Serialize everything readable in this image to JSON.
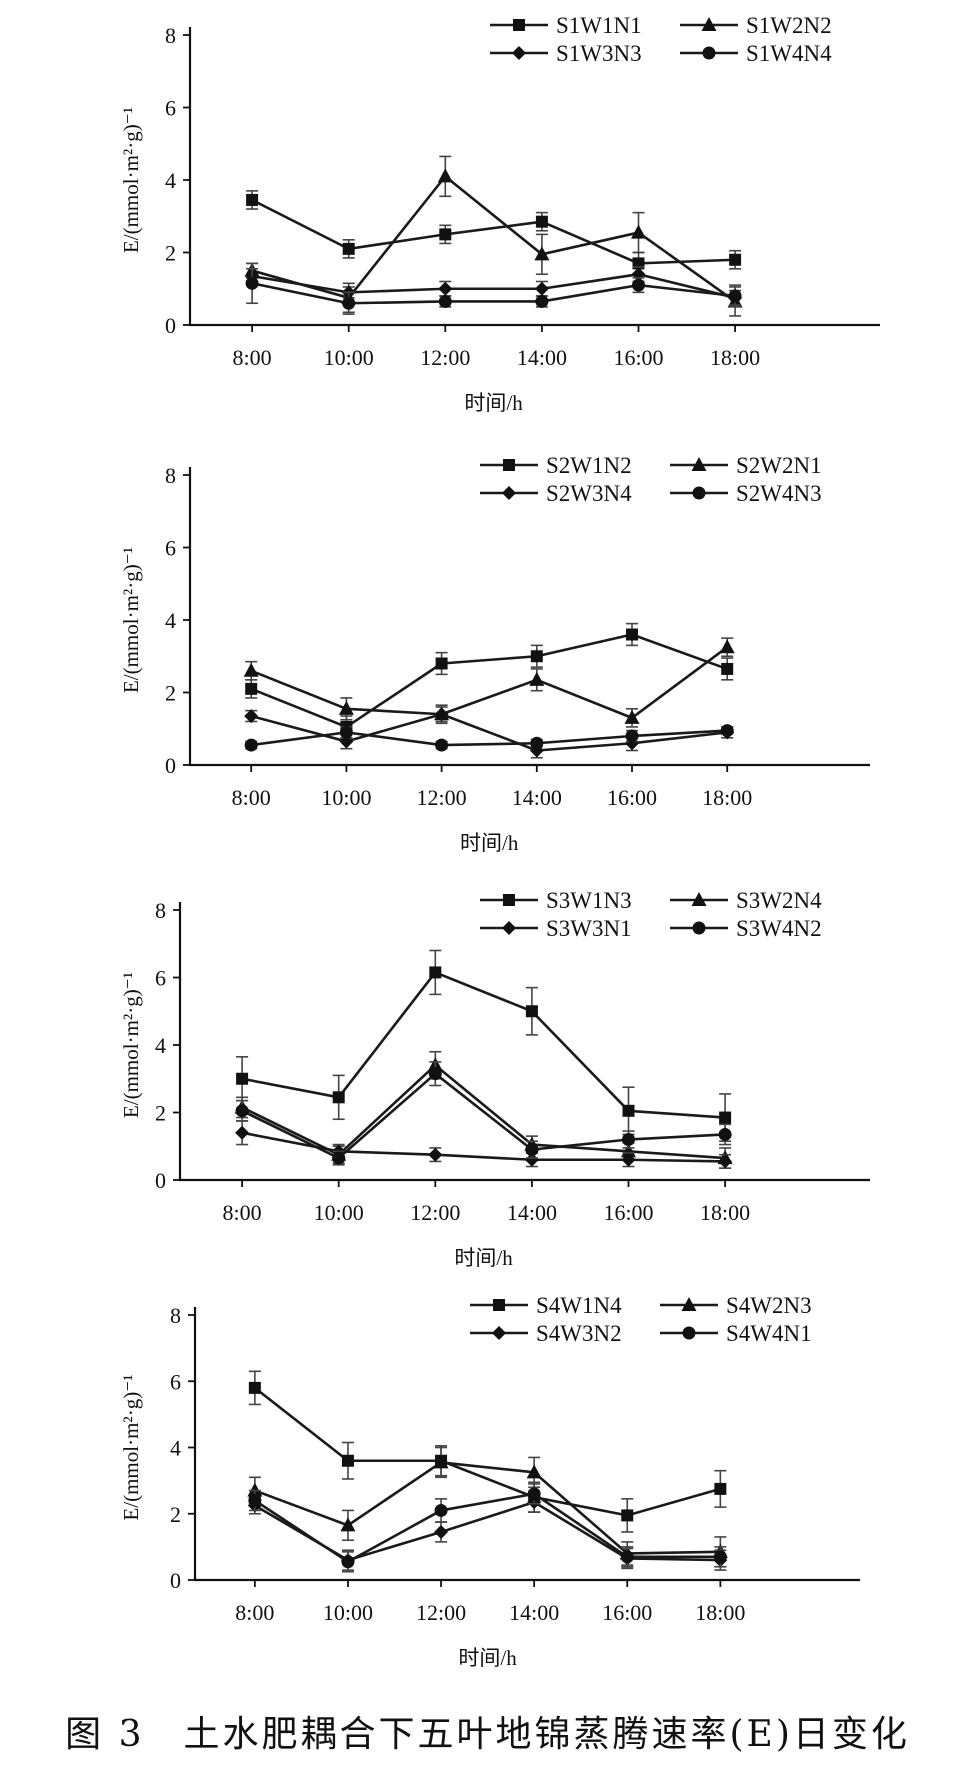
{
  "caption": "图 3　土水肥耦合下五叶地锦蒸腾速率(E)日变化",
  "chart_data": [
    {
      "type": "line",
      "title": "",
      "xlabel": "时间/h",
      "ylabel": "E/(mmol·m²·g)⁻¹",
      "categories": [
        "8:00",
        "10:00",
        "12:00",
        "14:00",
        "16:00",
        "18:00"
      ],
      "ylim": [
        0,
        8
      ],
      "yticks": [
        0,
        2,
        4,
        6,
        8
      ],
      "grid": false,
      "legend": "top-right",
      "series": [
        {
          "name": "S1W1N1",
          "marker": "square",
          "values": [
            3.45,
            2.1,
            2.5,
            2.85,
            1.7,
            1.8
          ],
          "errors": [
            0.25,
            0.25,
            0.25,
            0.25,
            0.3,
            0.25
          ]
        },
        {
          "name": "S1W2N2",
          "marker": "triangle",
          "values": [
            1.5,
            0.75,
            4.1,
            1.95,
            2.55,
            0.65
          ],
          "errors": [
            0.2,
            0.4,
            0.55,
            0.55,
            0.55,
            0.4
          ]
        },
        {
          "name": "S1W3N3",
          "marker": "diamond",
          "values": [
            1.35,
            0.9,
            1.0,
            1.0,
            1.4,
            0.75
          ],
          "errors": [
            0.2,
            0.15,
            0.2,
            0.2,
            0.2,
            0.2
          ]
        },
        {
          "name": "S1W4N4",
          "marker": "circle",
          "values": [
            1.15,
            0.6,
            0.65,
            0.65,
            1.1,
            0.8
          ],
          "errors": [
            0.55,
            0.3,
            0.15,
            0.15,
            0.2,
            0.3
          ]
        }
      ]
    },
    {
      "type": "line",
      "title": "",
      "xlabel": "时间/h",
      "ylabel": "E/(mmol·m²·g)⁻¹",
      "categories": [
        "8:00",
        "10:00",
        "12:00",
        "14:00",
        "16:00",
        "18:00"
      ],
      "ylim": [
        0,
        8
      ],
      "yticks": [
        0,
        2,
        4,
        6,
        8
      ],
      "grid": false,
      "legend": "top-right",
      "series": [
        {
          "name": "S2W1N2",
          "marker": "square",
          "values": [
            2.1,
            1.05,
            2.8,
            3.0,
            3.6,
            2.65
          ],
          "errors": [
            0.25,
            0.3,
            0.3,
            0.3,
            0.3,
            0.3
          ]
        },
        {
          "name": "S2W2N1",
          "marker": "triangle",
          "values": [
            2.6,
            1.55,
            1.4,
            2.35,
            1.3,
            3.25
          ],
          "errors": [
            0.25,
            0.3,
            0.25,
            0.3,
            0.25,
            0.25
          ]
        },
        {
          "name": "S2W3N4",
          "marker": "diamond",
          "values": [
            1.35,
            0.65,
            1.4,
            0.4,
            0.6,
            0.9
          ],
          "errors": [
            0.15,
            0.2,
            0.2,
            0.2,
            0.2,
            0.15
          ]
        },
        {
          "name": "S2W4N3",
          "marker": "circle",
          "values": [
            0.55,
            0.9,
            0.55,
            0.6,
            0.8,
            0.95
          ],
          "errors": [
            0.1,
            0.15,
            0.1,
            0.1,
            0.15,
            0.1
          ]
        }
      ]
    },
    {
      "type": "line",
      "title": "",
      "xlabel": "时间/h",
      "ylabel": "E/(mmol·m²·g)⁻¹",
      "categories": [
        "8:00",
        "10:00",
        "12:00",
        "14:00",
        "16:00",
        "18:00"
      ],
      "ylim": [
        0,
        8
      ],
      "yticks": [
        0,
        2,
        4,
        6,
        8
      ],
      "grid": false,
      "legend": "top-right",
      "series": [
        {
          "name": "S3W1N3",
          "marker": "square",
          "values": [
            3.0,
            2.45,
            6.15,
            5.0,
            2.05,
            1.85
          ],
          "errors": [
            0.65,
            0.65,
            0.65,
            0.7,
            0.7,
            0.7
          ]
        },
        {
          "name": "S3W2N4",
          "marker": "triangle",
          "values": [
            2.15,
            0.75,
            3.4,
            1.05,
            0.85,
            0.65
          ],
          "errors": [
            0.3,
            0.25,
            0.4,
            0.25,
            0.25,
            0.3
          ]
        },
        {
          "name": "S3W3N1",
          "marker": "diamond",
          "values": [
            1.4,
            0.85,
            0.75,
            0.6,
            0.6,
            0.55
          ],
          "errors": [
            0.35,
            0.2,
            0.2,
            0.2,
            0.2,
            0.2
          ]
        },
        {
          "name": "S3W4N2",
          "marker": "circle",
          "values": [
            2.05,
            0.65,
            3.15,
            0.9,
            1.2,
            1.35
          ],
          "errors": [
            0.3,
            0.2,
            0.35,
            0.25,
            0.25,
            0.3
          ]
        }
      ]
    },
    {
      "type": "line",
      "title": "",
      "xlabel": "时间/h",
      "ylabel": "E/(mmol·m²·g)⁻¹",
      "categories": [
        "8:00",
        "10:00",
        "12:00",
        "14:00",
        "16:00",
        "18:00"
      ],
      "ylim": [
        0,
        8
      ],
      "yticks": [
        0,
        2,
        4,
        6,
        8
      ],
      "grid": false,
      "legend": "top-right",
      "series": [
        {
          "name": "S4W1N4",
          "marker": "square",
          "values": [
            5.8,
            3.6,
            3.6,
            2.5,
            1.95,
            2.75
          ],
          "errors": [
            0.5,
            0.55,
            0.45,
            0.45,
            0.5,
            0.55
          ]
        },
        {
          "name": "S4W2N3",
          "marker": "triangle",
          "values": [
            2.7,
            1.65,
            3.55,
            3.25,
            0.8,
            0.85
          ],
          "errors": [
            0.4,
            0.45,
            0.45,
            0.45,
            0.35,
            0.45
          ]
        },
        {
          "name": "S4W3N2",
          "marker": "diamond",
          "values": [
            2.25,
            0.6,
            1.45,
            2.35,
            0.65,
            0.6
          ],
          "errors": [
            0.25,
            0.3,
            0.3,
            0.3,
            0.3,
            0.3
          ]
        },
        {
          "name": "S4W4N1",
          "marker": "circle",
          "values": [
            2.4,
            0.55,
            2.1,
            2.6,
            0.7,
            0.7
          ],
          "errors": [
            0.3,
            0.3,
            0.35,
            0.3,
            0.3,
            0.3
          ]
        }
      ]
    }
  ]
}
